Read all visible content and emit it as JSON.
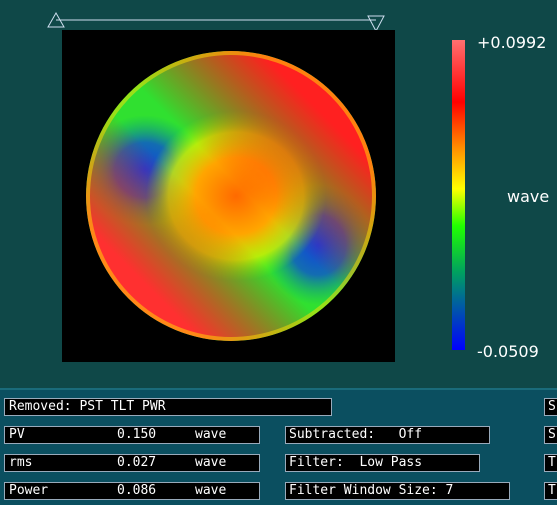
{
  "colorbar": {
    "max": "+0.0992",
    "unit": "wave",
    "min": "-0.0509"
  },
  "removed": "Removed: PST TLT PWR",
  "stats": [
    {
      "label": "PV",
      "value": "0.150",
      "unit": "wave"
    },
    {
      "label": "rms",
      "value": "0.027",
      "unit": "wave"
    },
    {
      "label": "Power",
      "value": "0.086",
      "unit": "wave"
    }
  ],
  "settings": [
    "Subtracted:   Off",
    "Filter:  Low Pass",
    "Filter Window Size: 7"
  ],
  "side": [
    "S",
    "S",
    "T",
    "T"
  ]
}
